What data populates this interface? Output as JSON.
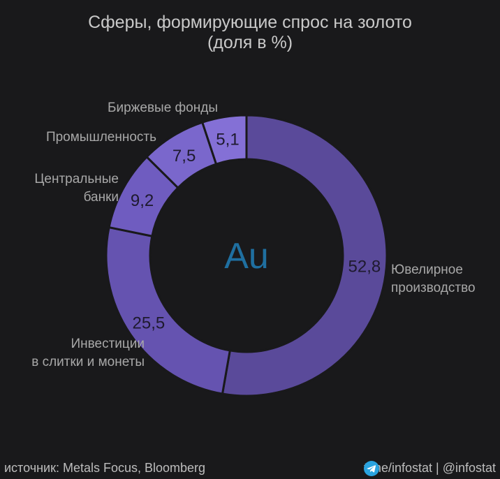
{
  "chart_data": {
    "type": "pie",
    "title": "Сферы, формирующие спрос на золото",
    "subtitle": "(доля в %)",
    "center_label": "Au",
    "slices": [
      {
        "name": "Ювелирное производство",
        "label_lines": [
          "Ювелирное",
          "производство"
        ],
        "value": 52.8,
        "value_label": "52,8",
        "color": "#5a4a9a"
      },
      {
        "name": "Инвестиции в слитки и монеты",
        "label_lines": [
          "Инвестиции",
          "в слитки и монеты"
        ],
        "value": 25.5,
        "value_label": "25,5",
        "color": "#6553b0"
      },
      {
        "name": "Центральные банки",
        "label_lines": [
          "Центральные",
          "банки"
        ],
        "value": 9.2,
        "value_label": "9,2",
        "color": "#6f5cc0"
      },
      {
        "name": "Промышленность",
        "label_lines": [
          "Промышленность"
        ],
        "value": 7.5,
        "value_label": "7,5",
        "color": "#7a67cc"
      },
      {
        "name": "Биржевые фонды",
        "label_lines": [
          "Биржевые фонды"
        ],
        "value": 5.1,
        "value_label": "5,1",
        "color": "#8470d6"
      }
    ],
    "colors": {
      "label": "#a8a8a8",
      "value": "#1e1a2e",
      "center": "#1f6fa0",
      "separator": "#19191b"
    }
  },
  "footer": {
    "source": "источник: Metals Focus, Bloomberg",
    "channel": "t.me/infostat | @infostat",
    "icon": "telegram-icon"
  }
}
